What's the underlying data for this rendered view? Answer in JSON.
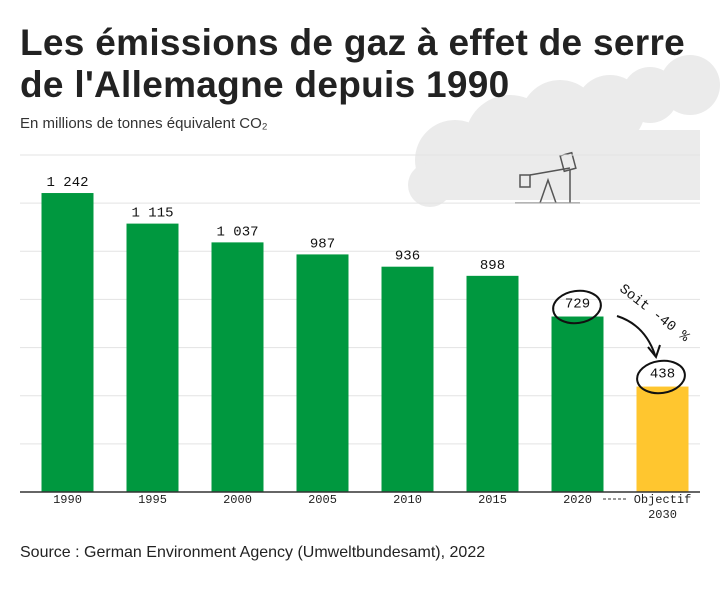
{
  "chart_data": {
    "type": "bar",
    "title": "Les émissions de gaz à effet de serre\nde l'Allemagne depuis 1990",
    "subtitle": "En millions de tonnes équivalent CO₂",
    "categories": [
      "1990",
      "1995",
      "2000",
      "2005",
      "2010",
      "2015",
      "2020",
      "Objectif\n2030"
    ],
    "values": [
      1242,
      1115,
      1037,
      987,
      936,
      898,
      729,
      438
    ],
    "value_labels": [
      "1 242",
      "1 115",
      "1 037",
      "987",
      "936",
      "898",
      "729",
      "438"
    ],
    "colors": [
      "#00983f",
      "#00983f",
      "#00983f",
      "#00983f",
      "#00983f",
      "#00983f",
      "#00983f",
      "#ffc62f"
    ],
    "ylim": [
      0,
      1400
    ],
    "yticks": [
      200,
      400,
      600,
      800,
      1000,
      1200,
      1400
    ],
    "grid": true,
    "annotation": "Soit -40 %",
    "source": "Source : German Environment Agency (Umweltbundesamt), 2022"
  }
}
